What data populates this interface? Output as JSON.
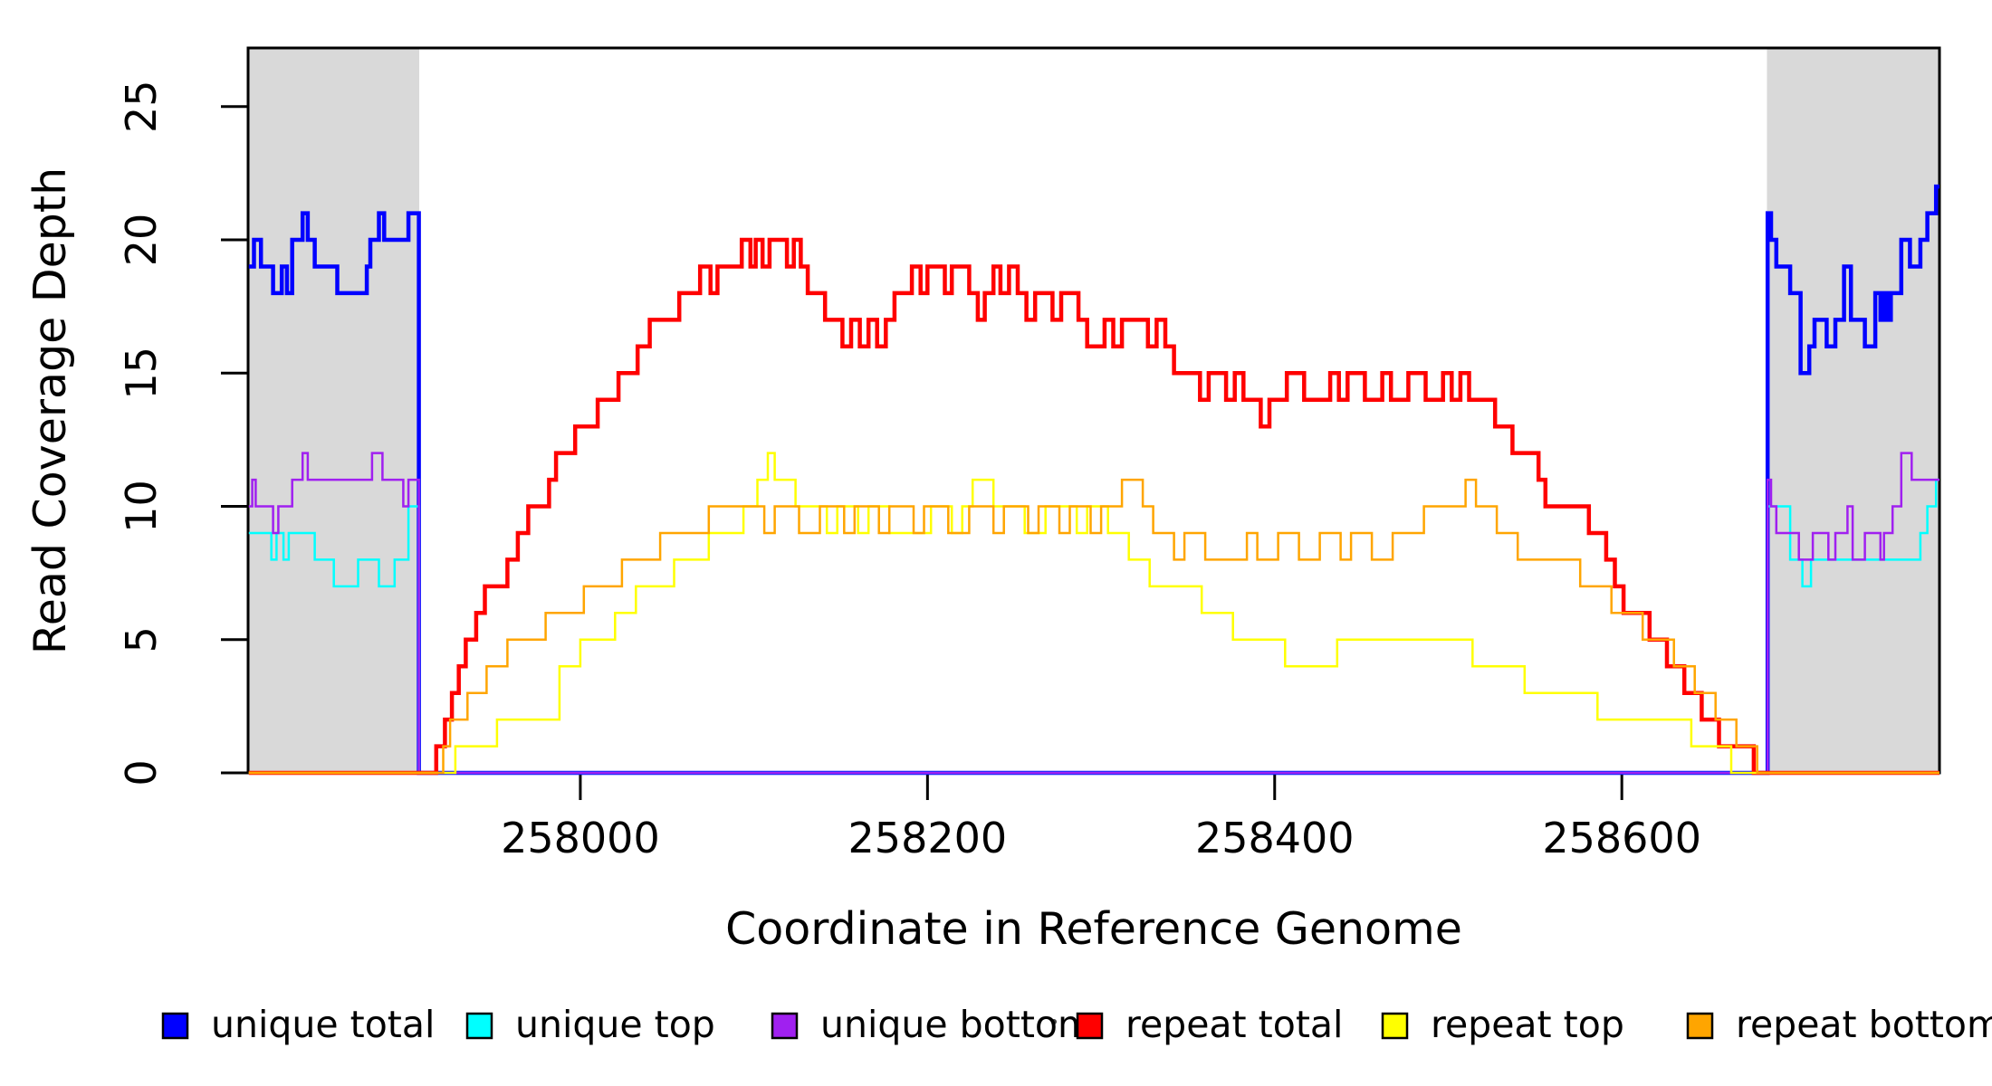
{
  "figure": {
    "background": "#FFFFFF",
    "text_color": "#000000",
    "plot_border_color": "#000000",
    "shaded_band_color": "#D9D9D9"
  },
  "chart_data": {
    "type": "line",
    "subtype": "step",
    "title": "",
    "xlabel": "Coordinate in Reference Genome",
    "ylabel": "Read Coverage Depth",
    "xlim": [
      257808.6,
      258783
    ],
    "ylim": [
      0,
      27.2
    ],
    "xticks": [
      258000,
      258200,
      258400,
      258600
    ],
    "yticks": [
      0,
      5,
      10,
      15,
      20,
      25
    ],
    "grid": false,
    "legend_position": "bottom",
    "shaded_regions": [
      {
        "x0": 257808.6,
        "x1": 257907.2,
        "color": "#D9D9D9"
      },
      {
        "x0": 258683.6,
        "x1": 258783.0,
        "color": "#D9D9D9"
      }
    ],
    "series": [
      {
        "name": "unique total",
        "color": "#0000FF",
        "line_width": 4.5,
        "points": [
          [
            257809,
            19
          ],
          [
            257812,
            20
          ],
          [
            257816,
            19
          ],
          [
            257823,
            18
          ],
          [
            257828,
            19
          ],
          [
            257831,
            18
          ],
          [
            257834,
            20
          ],
          [
            257840,
            21
          ],
          [
            257843,
            20
          ],
          [
            257847,
            19
          ],
          [
            257860,
            18
          ],
          [
            257877,
            19
          ],
          [
            257879,
            20
          ],
          [
            257884,
            21
          ],
          [
            257887,
            20
          ],
          [
            257901,
            21
          ],
          [
            257907,
            0
          ],
          [
            258684,
            21
          ],
          [
            258686,
            20
          ],
          [
            258689,
            19
          ],
          [
            258697,
            18
          ],
          [
            258703,
            15
          ],
          [
            258708,
            16
          ],
          [
            258711,
            17
          ],
          [
            258718,
            16
          ],
          [
            258723,
            17
          ],
          [
            258728,
            19
          ],
          [
            258732,
            17
          ],
          [
            258740,
            16
          ],
          [
            258746,
            18
          ],
          [
            258749,
            17
          ],
          [
            258751,
            18
          ],
          [
            258753,
            17
          ],
          [
            258755,
            18
          ],
          [
            258761,
            20
          ],
          [
            258766,
            19
          ],
          [
            258772,
            20
          ],
          [
            258776,
            21
          ],
          [
            258781,
            22
          ],
          [
            258783,
            22
          ]
        ]
      },
      {
        "name": "unique top",
        "color": "#00FFFF",
        "line_width": 2.5,
        "points": [
          [
            257809,
            9
          ],
          [
            257822,
            8
          ],
          [
            257825,
            9
          ],
          [
            257829,
            8
          ],
          [
            257832,
            9
          ],
          [
            257847,
            8
          ],
          [
            257858,
            7
          ],
          [
            257872,
            8
          ],
          [
            257884,
            7
          ],
          [
            257893,
            8
          ],
          [
            257901,
            10
          ],
          [
            257907,
            0
          ],
          [
            258684,
            10
          ],
          [
            258697,
            8
          ],
          [
            258704,
            7
          ],
          [
            258709,
            8
          ],
          [
            258730,
            8
          ],
          [
            258751,
            8
          ],
          [
            258772,
            9
          ],
          [
            258776,
            10
          ],
          [
            258781,
            11
          ],
          [
            258783,
            11
          ]
        ]
      },
      {
        "name": "unique bottom",
        "color": "#A020F0",
        "line_width": 2.5,
        "points": [
          [
            257809,
            10
          ],
          [
            257811,
            11
          ],
          [
            257813,
            10
          ],
          [
            257823,
            9
          ],
          [
            257826,
            10
          ],
          [
            257834,
            11
          ],
          [
            257840,
            12
          ],
          [
            257843,
            11
          ],
          [
            257880,
            12
          ],
          [
            257886,
            11
          ],
          [
            257898,
            10
          ],
          [
            257901,
            11
          ],
          [
            257907,
            0
          ],
          [
            258684,
            11
          ],
          [
            258686,
            10
          ],
          [
            258689,
            9
          ],
          [
            258702,
            8
          ],
          [
            258710,
            9
          ],
          [
            258719,
            8
          ],
          [
            258723,
            9
          ],
          [
            258730,
            10
          ],
          [
            258733,
            8
          ],
          [
            258740,
            9
          ],
          [
            258749,
            8
          ],
          [
            258751,
            9
          ],
          [
            258756,
            10
          ],
          [
            258761,
            12
          ],
          [
            258767,
            11
          ],
          [
            258783,
            11
          ]
        ]
      },
      {
        "name": "repeat total",
        "color": "#FF0000",
        "line_width": 4.5,
        "points": [
          [
            257809,
            0
          ],
          [
            257915,
            0
          ],
          [
            257917,
            1
          ],
          [
            257922,
            2
          ],
          [
            257926,
            3
          ],
          [
            257930,
            4
          ],
          [
            257934,
            5
          ],
          [
            257940,
            6
          ],
          [
            257945,
            7
          ],
          [
            257958,
            8
          ],
          [
            257964,
            9
          ],
          [
            257970,
            10
          ],
          [
            257982,
            11
          ],
          [
            257986,
            12
          ],
          [
            257997,
            13
          ],
          [
            258010,
            14
          ],
          [
            258022,
            15
          ],
          [
            258033,
            16
          ],
          [
            258040,
            17
          ],
          [
            258057,
            18
          ],
          [
            258069,
            19
          ],
          [
            258075,
            18
          ],
          [
            258079,
            19
          ],
          [
            258093,
            20
          ],
          [
            258098,
            19
          ],
          [
            258101,
            20
          ],
          [
            258105,
            19
          ],
          [
            258109,
            20
          ],
          [
            258119,
            19
          ],
          [
            258123,
            20
          ],
          [
            258127,
            19
          ],
          [
            258131,
            18
          ],
          [
            258141,
            17
          ],
          [
            258151,
            16
          ],
          [
            258156,
            17
          ],
          [
            258161,
            16
          ],
          [
            258166,
            17
          ],
          [
            258171,
            16
          ],
          [
            258176,
            17
          ],
          [
            258181,
            18
          ],
          [
            258191,
            19
          ],
          [
            258196,
            18
          ],
          [
            258200,
            19
          ],
          [
            258210,
            18
          ],
          [
            258214,
            19
          ],
          [
            258224,
            18
          ],
          [
            258229,
            17
          ],
          [
            258233,
            18
          ],
          [
            258238,
            19
          ],
          [
            258242,
            18
          ],
          [
            258247,
            19
          ],
          [
            258252,
            18
          ],
          [
            258257,
            17
          ],
          [
            258262,
            18
          ],
          [
            258272,
            17
          ],
          [
            258277,
            18
          ],
          [
            258287,
            17
          ],
          [
            258292,
            16
          ],
          [
            258302,
            17
          ],
          [
            258307,
            16
          ],
          [
            258312,
            17
          ],
          [
            258322,
            17
          ],
          [
            258327,
            16
          ],
          [
            258332,
            17
          ],
          [
            258337,
            16
          ],
          [
            258342,
            15
          ],
          [
            258352,
            15
          ],
          [
            258357,
            14
          ],
          [
            258362,
            15
          ],
          [
            258372,
            14
          ],
          [
            258377,
            15
          ],
          [
            258382,
            14
          ],
          [
            258392,
            13
          ],
          [
            258397,
            14
          ],
          [
            258407,
            15
          ],
          [
            258417,
            14
          ],
          [
            258432,
            15
          ],
          [
            258437,
            14
          ],
          [
            258442,
            15
          ],
          [
            258452,
            14
          ],
          [
            258462,
            15
          ],
          [
            258467,
            14
          ],
          [
            258477,
            15
          ],
          [
            258487,
            14
          ],
          [
            258497,
            15
          ],
          [
            258502,
            14
          ],
          [
            258507,
            15
          ],
          [
            258512,
            14
          ],
          [
            258522,
            14
          ],
          [
            258527,
            13
          ],
          [
            258537,
            12
          ],
          [
            258552,
            11
          ],
          [
            258556,
            10
          ],
          [
            258576,
            10
          ],
          [
            258581,
            9
          ],
          [
            258591,
            8
          ],
          [
            258596,
            7
          ],
          [
            258601,
            6
          ],
          [
            258616,
            5
          ],
          [
            258626,
            4
          ],
          [
            258636,
            3
          ],
          [
            258646,
            2
          ],
          [
            258656,
            1
          ],
          [
            258671,
            1
          ],
          [
            258676,
            0
          ],
          [
            258783,
            0
          ]
        ]
      },
      {
        "name": "repeat top",
        "color": "#FFFF00",
        "line_width": 2.5,
        "points": [
          [
            257809,
            0
          ],
          [
            257923,
            0
          ],
          [
            257928,
            1
          ],
          [
            257952,
            2
          ],
          [
            257988,
            4
          ],
          [
            258000,
            5
          ],
          [
            258020,
            6
          ],
          [
            258032,
            7
          ],
          [
            258054,
            8
          ],
          [
            258074,
            9
          ],
          [
            258094,
            10
          ],
          [
            258102,
            11
          ],
          [
            258108,
            12
          ],
          [
            258112,
            11
          ],
          [
            258124,
            10
          ],
          [
            258142,
            9
          ],
          [
            258148,
            10
          ],
          [
            258160,
            9
          ],
          [
            258166,
            10
          ],
          [
            258178,
            9
          ],
          [
            258202,
            10
          ],
          [
            258214,
            9
          ],
          [
            258220,
            10
          ],
          [
            258226,
            11
          ],
          [
            258238,
            10
          ],
          [
            258256,
            9
          ],
          [
            258268,
            10
          ],
          [
            258286,
            9
          ],
          [
            258292,
            10
          ],
          [
            258304,
            9
          ],
          [
            258316,
            8
          ],
          [
            258328,
            7
          ],
          [
            258358,
            6
          ],
          [
            258376,
            5
          ],
          [
            258406,
            4
          ],
          [
            258436,
            5
          ],
          [
            258514,
            4
          ],
          [
            258544,
            3
          ],
          [
            258586,
            2
          ],
          [
            258640,
            1
          ],
          [
            258663,
            0
          ],
          [
            258783,
            0
          ]
        ]
      },
      {
        "name": "repeat bottom",
        "color": "#FFA500",
        "line_width": 2.5,
        "points": [
          [
            257809,
            0
          ],
          [
            257918,
            0
          ],
          [
            257921,
            1
          ],
          [
            257925,
            2
          ],
          [
            257935,
            3
          ],
          [
            257946,
            4
          ],
          [
            257958,
            5
          ],
          [
            257980,
            6
          ],
          [
            258002,
            7
          ],
          [
            258024,
            8
          ],
          [
            258046,
            9
          ],
          [
            258074,
            10
          ],
          [
            258106,
            9
          ],
          [
            258112,
            10
          ],
          [
            258126,
            9
          ],
          [
            258138,
            10
          ],
          [
            258152,
            9
          ],
          [
            258158,
            10
          ],
          [
            258172,
            9
          ],
          [
            258178,
            10
          ],
          [
            258192,
            9
          ],
          [
            258198,
            10
          ],
          [
            258212,
            9
          ],
          [
            258224,
            10
          ],
          [
            258238,
            9
          ],
          [
            258244,
            10
          ],
          [
            258258,
            9
          ],
          [
            258264,
            10
          ],
          [
            258276,
            9
          ],
          [
            258282,
            10
          ],
          [
            258294,
            9
          ],
          [
            258300,
            10
          ],
          [
            258312,
            11
          ],
          [
            258324,
            10
          ],
          [
            258330,
            9
          ],
          [
            258342,
            8
          ],
          [
            258348,
            9
          ],
          [
            258360,
            8
          ],
          [
            258384,
            9
          ],
          [
            258390,
            8
          ],
          [
            258402,
            9
          ],
          [
            258414,
            8
          ],
          [
            258426,
            9
          ],
          [
            258438,
            8
          ],
          [
            258444,
            9
          ],
          [
            258456,
            8
          ],
          [
            258468,
            9
          ],
          [
            258486,
            10
          ],
          [
            258510,
            11
          ],
          [
            258516,
            10
          ],
          [
            258528,
            9
          ],
          [
            258540,
            8
          ],
          [
            258576,
            7
          ],
          [
            258594,
            6
          ],
          [
            258612,
            5
          ],
          [
            258630,
            4
          ],
          [
            258642,
            3
          ],
          [
            258654,
            2
          ],
          [
            258666,
            1
          ],
          [
            258678,
            0
          ],
          [
            258783,
            0
          ]
        ]
      }
    ]
  }
}
